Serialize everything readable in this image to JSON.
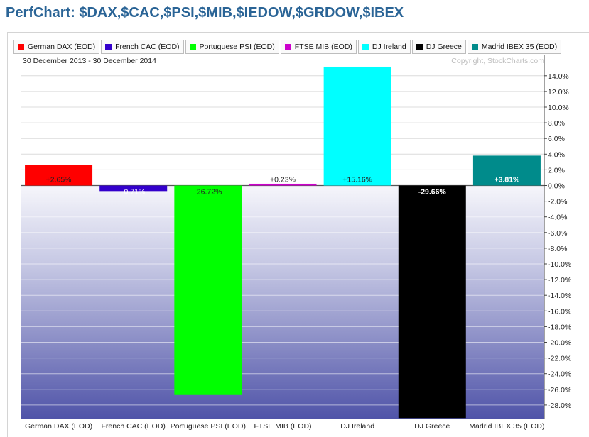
{
  "page_title": "PerfChart: $DAX,$CAC,$PSI,$MIB,$IEDOW,$GRDOW,$IBEX",
  "date_range": "30 December 2013 - 30 December 2014",
  "copyright": "Copyright, StockCharts.com",
  "chart_data": {
    "type": "bar",
    "title": "PerfChart: $DAX,$CAC,$PSI,$MIB,$IEDOW,$GRDOW,$IBEX",
    "categories": [
      "German DAX (EOD)",
      "French CAC (EOD)",
      "Portuguese PSI (EOD)",
      "FTSE MIB (EOD)",
      "DJ Ireland",
      "DJ Greece",
      "Madrid IBEX 35 (EOD)"
    ],
    "values": [
      2.65,
      -0.71,
      -26.72,
      0.23,
      15.16,
      -29.66,
      3.81
    ],
    "value_labels": [
      "+2.65%",
      "-0.71%",
      "-26.72%",
      "+0.23%",
      "+15.16%",
      "-29.66%",
      "+3.81%"
    ],
    "colors": [
      "#ff0000",
      "#3300cc",
      "#00ff00",
      "#cc00cc",
      "#00ffff",
      "#000000",
      "#008b8b"
    ],
    "ylim": [
      -30.5,
      15
    ],
    "yticks": [
      14,
      12,
      10,
      8,
      6,
      4,
      2,
      0,
      -2,
      -4,
      -6,
      -8,
      -10,
      -12,
      -14,
      -16,
      -18,
      -20,
      -22,
      -24,
      -26,
      -28
    ],
    "ytick_labels": [
      "14.0%",
      "12.0%",
      "10.0%",
      "8.0%",
      "6.0%",
      "4.0%",
      "2.0%",
      "0.0%",
      "-2.0%",
      "-4.0%",
      "-6.0%",
      "-8.0%",
      "-10.0%",
      "-12.0%",
      "-14.0%",
      "-16.0%",
      "-18.0%",
      "-20.0%",
      "-22.0%",
      "-24.0%",
      "-26.0%",
      "-28.0%"
    ],
    "grid": true,
    "legend": "top",
    "ylabel": "",
    "xlabel": ""
  }
}
